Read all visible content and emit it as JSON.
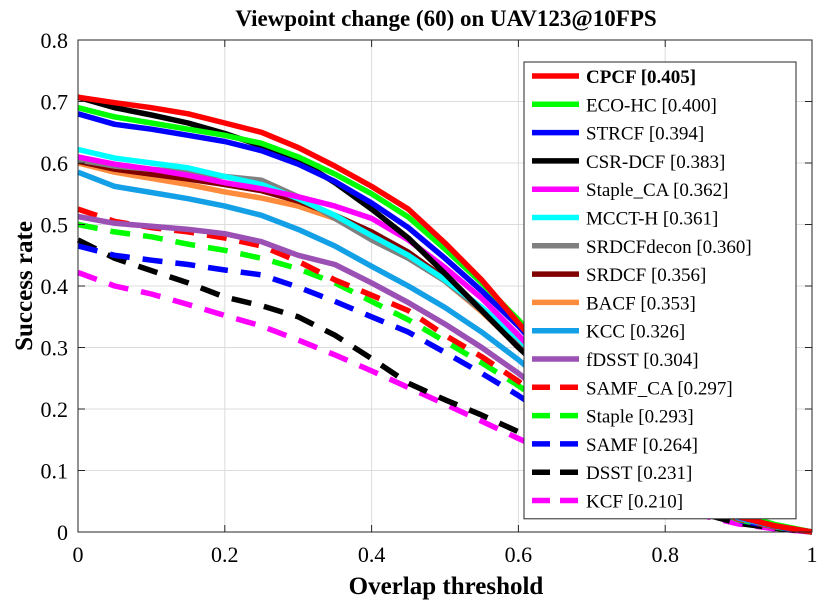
{
  "chart_data": {
    "type": "line",
    "title": "Viewpoint change (60) on UAV123@10FPS",
    "xlabel": "Overlap threshold",
    "ylabel": "Success rate",
    "xlim": [
      0,
      1
    ],
    "ylim": [
      0,
      0.8
    ],
    "x_ticks": [
      0,
      0.2,
      0.4,
      0.6,
      0.8,
      1
    ],
    "x_tick_labels": [
      "0",
      "0.2",
      "0.4",
      "0.6",
      "0.8",
      "1"
    ],
    "y_ticks": [
      0,
      0.1,
      0.2,
      0.3,
      0.4,
      0.5,
      0.6,
      0.7,
      0.8
    ],
    "y_tick_labels": [
      "0",
      "0.1",
      "0.2",
      "0.3",
      "0.4",
      "0.5",
      "0.6",
      "0.7",
      "0.8"
    ],
    "grid": true,
    "legend_position": "top-right",
    "x": [
      0,
      0.05,
      0.1,
      0.15,
      0.2,
      0.25,
      0.3,
      0.35,
      0.4,
      0.45,
      0.5,
      0.55,
      0.6,
      0.65,
      0.7,
      0.75,
      0.8,
      0.85,
      0.9,
      0.95,
      1
    ],
    "series": [
      {
        "name": "CPCF [0.405]",
        "color": "#ff0000",
        "style": "solid",
        "bold": true,
        "values": [
          0.707,
          0.698,
          0.69,
          0.68,
          0.665,
          0.65,
          0.625,
          0.595,
          0.562,
          0.525,
          0.47,
          0.41,
          0.34,
          0.27,
          0.2,
          0.14,
          0.09,
          0.052,
          0.025,
          0.01,
          0.0
        ]
      },
      {
        "name": "ECO-HC [0.400]",
        "color": "#00ff00",
        "style": "solid",
        "bold": false,
        "values": [
          0.69,
          0.675,
          0.665,
          0.655,
          0.645,
          0.632,
          0.61,
          0.582,
          0.55,
          0.512,
          0.46,
          0.405,
          0.345,
          0.278,
          0.21,
          0.15,
          0.098,
          0.058,
          0.03,
          0.012,
          0.0
        ]
      },
      {
        "name": "STRCF [0.394]",
        "color": "#0000ff",
        "style": "solid",
        "bold": false,
        "values": [
          0.68,
          0.663,
          0.655,
          0.645,
          0.635,
          0.62,
          0.598,
          0.57,
          0.535,
          0.495,
          0.445,
          0.392,
          0.335,
          0.27,
          0.205,
          0.145,
          0.092,
          0.052,
          0.025,
          0.01,
          0.0
        ]
      },
      {
        "name": "CSR-DCF [0.383]",
        "color": "#000000",
        "style": "solid",
        "bold": false,
        "values": [
          0.707,
          0.69,
          0.678,
          0.665,
          0.648,
          0.628,
          0.605,
          0.568,
          0.525,
          0.478,
          0.42,
          0.36,
          0.3,
          0.245,
          0.19,
          0.138,
          0.09,
          0.052,
          0.025,
          0.01,
          0.0
        ]
      },
      {
        "name": "Staple_CA [0.362]",
        "color": "#ff00ff",
        "style": "solid",
        "bold": false,
        "values": [
          0.61,
          0.598,
          0.59,
          0.58,
          0.568,
          0.558,
          0.545,
          0.53,
          0.51,
          0.475,
          0.43,
          0.38,
          0.32,
          0.258,
          0.195,
          0.14,
          0.092,
          0.053,
          0.025,
          0.01,
          0.0
        ]
      },
      {
        "name": "MCCT-H [0.361]",
        "color": "#00ffff",
        "style": "solid",
        "bold": false,
        "values": [
          0.622,
          0.608,
          0.6,
          0.592,
          0.578,
          0.565,
          0.542,
          0.515,
          0.482,
          0.45,
          0.41,
          0.365,
          0.315,
          0.255,
          0.192,
          0.137,
          0.09,
          0.052,
          0.025,
          0.01,
          0.0
        ]
      },
      {
        "name": "SRDCFdecon [0.360]",
        "color": "#808080",
        "style": "solid",
        "bold": false,
        "values": [
          0.605,
          0.595,
          0.59,
          0.585,
          0.578,
          0.572,
          0.545,
          0.51,
          0.475,
          0.445,
          0.408,
          0.36,
          0.305,
          0.245,
          0.185,
          0.132,
          0.087,
          0.05,
          0.025,
          0.01,
          0.0
        ]
      },
      {
        "name": "SRDCF [0.356]",
        "color": "#800000",
        "style": "solid",
        "bold": false,
        "values": [
          0.603,
          0.59,
          0.582,
          0.574,
          0.565,
          0.555,
          0.538,
          0.515,
          0.488,
          0.455,
          0.412,
          0.362,
          0.305,
          0.245,
          0.185,
          0.132,
          0.087,
          0.05,
          0.025,
          0.01,
          0.0
        ]
      },
      {
        "name": "BACF [0.353]",
        "color": "#ff8c3c",
        "style": "solid",
        "bold": false,
        "values": [
          0.6,
          0.585,
          0.575,
          0.565,
          0.553,
          0.543,
          0.53,
          0.51,
          0.485,
          0.452,
          0.408,
          0.358,
          0.302,
          0.242,
          0.182,
          0.13,
          0.085,
          0.05,
          0.025,
          0.01,
          0.0
        ]
      },
      {
        "name": "KCC [0.326]",
        "color": "#14a0e6",
        "style": "solid",
        "bold": false,
        "values": [
          0.585,
          0.562,
          0.552,
          0.542,
          0.53,
          0.515,
          0.492,
          0.465,
          0.432,
          0.4,
          0.365,
          0.325,
          0.28,
          0.23,
          0.175,
          0.125,
          0.082,
          0.048,
          0.023,
          0.009,
          0.0
        ]
      },
      {
        "name": "fDSST [0.304]",
        "color": "#9b50b4",
        "style": "solid",
        "bold": false,
        "values": [
          0.513,
          0.502,
          0.497,
          0.492,
          0.485,
          0.472,
          0.45,
          0.435,
          0.405,
          0.373,
          0.338,
          0.3,
          0.258,
          0.212,
          0.165,
          0.12,
          0.08,
          0.047,
          0.022,
          0.009,
          0.0
        ]
      },
      {
        "name": "SAMF_CA [0.297]",
        "color": "#ff0000",
        "style": "dashed",
        "bold": false,
        "values": [
          0.525,
          0.505,
          0.495,
          0.488,
          0.478,
          0.465,
          0.44,
          0.41,
          0.385,
          0.36,
          0.32,
          0.285,
          0.245,
          0.2,
          0.155,
          0.112,
          0.075,
          0.044,
          0.021,
          0.008,
          0.0
        ]
      },
      {
        "name": "Staple [0.293]",
        "color": "#00ff00",
        "style": "dashed",
        "bold": false,
        "values": [
          0.5,
          0.488,
          0.48,
          0.468,
          0.458,
          0.445,
          0.428,
          0.405,
          0.375,
          0.345,
          0.31,
          0.275,
          0.238,
          0.195,
          0.15,
          0.11,
          0.073,
          0.043,
          0.02,
          0.008,
          0.0
        ]
      },
      {
        "name": "SAMF [0.264]",
        "color": "#0000ff",
        "style": "dashed",
        "bold": false,
        "values": [
          0.465,
          0.45,
          0.442,
          0.435,
          0.426,
          0.418,
          0.398,
          0.375,
          0.35,
          0.325,
          0.292,
          0.258,
          0.222,
          0.182,
          0.142,
          0.103,
          0.068,
          0.04,
          0.019,
          0.008,
          0.0
        ]
      },
      {
        "name": "DSST [0.231]",
        "color": "#000000",
        "style": "dashed",
        "bold": false,
        "values": [
          0.475,
          0.445,
          0.425,
          0.405,
          0.382,
          0.368,
          0.35,
          0.32,
          0.282,
          0.242,
          0.215,
          0.19,
          0.163,
          0.135,
          0.105,
          0.077,
          0.051,
          0.03,
          0.014,
          0.006,
          0.0
        ]
      },
      {
        "name": "KCF [0.210]",
        "color": "#ff00ff",
        "style": "dashed",
        "bold": false,
        "values": [
          0.422,
          0.4,
          0.387,
          0.37,
          0.352,
          0.335,
          0.312,
          0.288,
          0.262,
          0.235,
          0.208,
          0.18,
          0.152,
          0.125,
          0.097,
          0.071,
          0.047,
          0.027,
          0.013,
          0.005,
          0.0
        ]
      }
    ]
  }
}
